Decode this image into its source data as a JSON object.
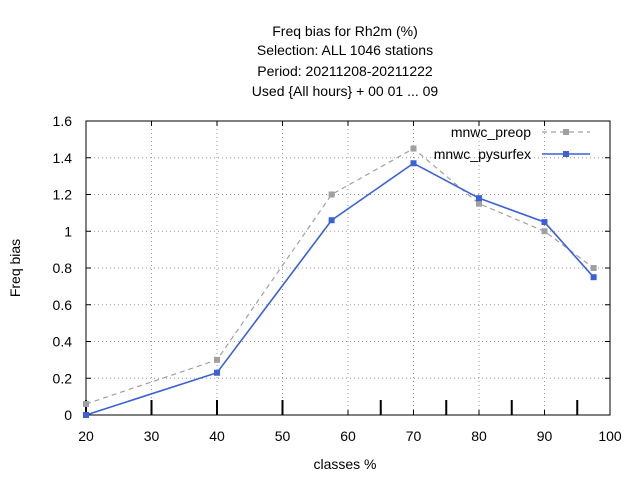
{
  "chart_data": {
    "type": "line",
    "title_lines": [
      "Freq bias  for Rh2m (%)",
      "Selection: ALL    1046 stations",
      "Period: 20211208-20211222",
      "Used {All hours} + 00 01 ... 09"
    ],
    "xlabel": "classes %",
    "ylabel": "Freq bias",
    "xlim": [
      20,
      100
    ],
    "ylim": [
      0,
      1.6
    ],
    "xticks": [
      "20",
      "30",
      "40",
      "50",
      "60",
      "70",
      "80",
      "90",
      "100"
    ],
    "yticks": [
      "0",
      "0.2",
      "0.4",
      "0.6",
      "0.8",
      "1",
      "1.2",
      "1.4",
      "1.6"
    ],
    "grid": true,
    "legend_position": "top-right",
    "series": [
      {
        "name": "mnwc_preop",
        "color": "#a0a0a0",
        "style": "dashed",
        "x": [
          20,
          40,
          57.5,
          70,
          80,
          90,
          97.5
        ],
        "y": [
          0.06,
          0.3,
          1.2,
          1.45,
          1.15,
          1.0,
          0.8
        ]
      },
      {
        "name": "mnwc_pysurfex",
        "color": "#3a62d6",
        "style": "solid",
        "x": [
          20,
          40,
          57.5,
          70,
          80,
          90,
          97.5
        ],
        "y": [
          0.0,
          0.23,
          1.06,
          1.37,
          1.18,
          1.05,
          0.75
        ]
      }
    ],
    "observation_class_marks": [
      20,
      30,
      40,
      50,
      65,
      75,
      85,
      95
    ]
  }
}
